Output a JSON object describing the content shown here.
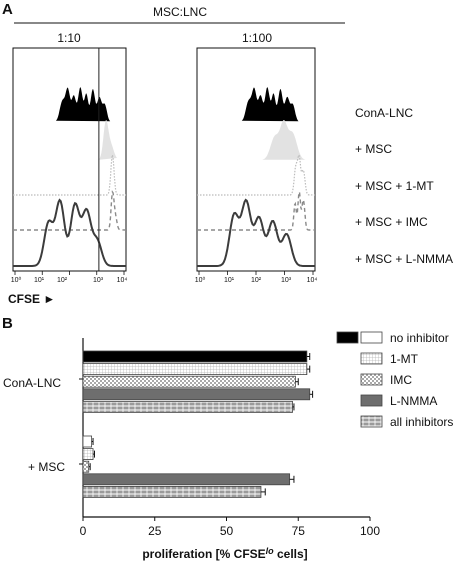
{
  "panelA": {
    "letter": "A",
    "ratio_title": "MSC:LNC",
    "panels": [
      {
        "title": "1:10"
      },
      {
        "title": "1:100"
      }
    ],
    "tick_labels": [
      "10⁰",
      "10¹",
      "10²",
      "10³",
      "10⁴"
    ],
    "row_labels": [
      "ConA-LNC",
      "+ MSC",
      "+ MSC + 1-MT",
      "+ MSC + IMC",
      "+ MSC + L-NMMA"
    ],
    "axis_label": "CFSE ►"
  },
  "chart_data": {
    "type": "bar",
    "orientation": "horizontal",
    "panel_letter": "B",
    "groups": [
      "ConA-LNC",
      "+ MSC"
    ],
    "xlabel": "proliferation [% CFSE",
    "xlabel_sup": "lo",
    "xlabel_end": " cells]",
    "xlim": [
      0,
      100
    ],
    "xticks": [
      0,
      25,
      50,
      75,
      100
    ],
    "series": [
      {
        "name": "no inhibitor",
        "values": [
          78,
          3
        ],
        "errors": [
          1,
          0.5
        ],
        "groupFill": [
          "#000000",
          "#ffffff"
        ]
      },
      {
        "name": "1-MT",
        "values": [
          78,
          3.5
        ],
        "errors": [
          1,
          0.5
        ],
        "pattern": "grid"
      },
      {
        "name": "IMC",
        "values": [
          74,
          2
        ],
        "errors": [
          1,
          0.5
        ],
        "pattern": "checker"
      },
      {
        "name": "L-NMMA",
        "values": [
          79,
          72
        ],
        "errors": [
          1,
          1.5
        ],
        "groupFill": [
          "#6e6e6e",
          "#6e6e6e"
        ]
      },
      {
        "name": "all inhibitors",
        "values": [
          73,
          62
        ],
        "errors": [
          0.5,
          1.5
        ],
        "pattern": "hlines"
      }
    ]
  }
}
